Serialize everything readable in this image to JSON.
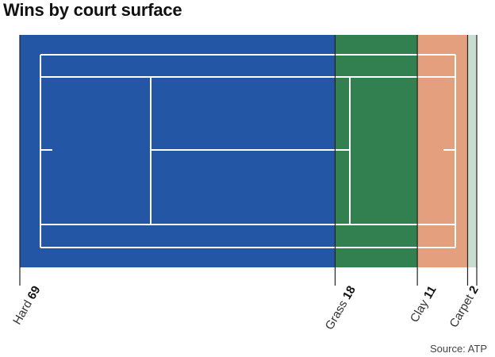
{
  "title": "Wins by court surface",
  "source": "Source: ATP",
  "chart_data": {
    "type": "bar",
    "orientation": "horizontal-stacked",
    "title": "Wins by court surface",
    "xlabel": "",
    "ylabel": "",
    "grid": false,
    "legend": "none",
    "total": 100,
    "categories": [
      "Hard",
      "Grass",
      "Clay",
      "Carpet"
    ],
    "values": [
      69,
      18,
      11,
      2
    ],
    "colors": [
      "#2456a6",
      "#328050",
      "#e4a07e",
      "#c6ddd0"
    ],
    "decoration": "tennis-court-lines"
  }
}
